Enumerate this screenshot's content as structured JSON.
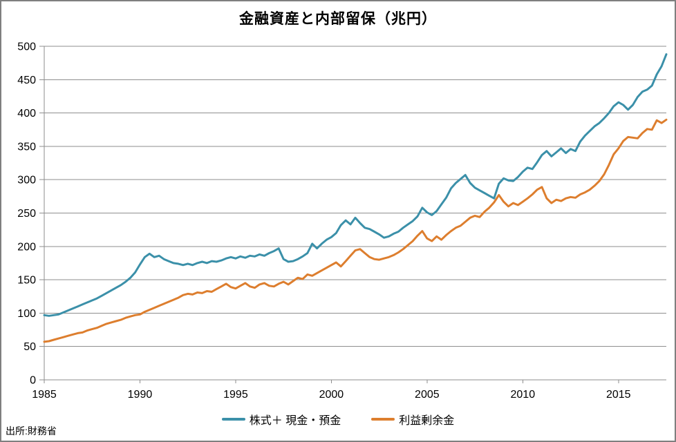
{
  "title": "金融資産と内部留保（兆円）",
  "source": "出所:財務省",
  "legend": [
    {
      "label": "株式＋ 現金・預金",
      "color": "#3B90A9"
    },
    {
      "label": "利益剰余金",
      "color": "#DD7E2E"
    }
  ],
  "colors": {
    "grid": "#8e8e8e",
    "axis": "#8e8e8e",
    "frame_border": "#7f7f7f",
    "text": "#000000"
  },
  "chart_data": {
    "type": "line",
    "title": "金融資産と内部留保（兆円）",
    "xlabel": "",
    "ylabel": "",
    "x_start": 1985,
    "x_step": 0.25,
    "x_ticks": [
      1985,
      1990,
      1995,
      2000,
      2005,
      2010,
      2015
    ],
    "ylim": [
      0,
      500
    ],
    "y_tick_step": 50,
    "grid": true,
    "legend_position": "bottom",
    "series": [
      {
        "name": "株式＋ 現金・預金",
        "color": "#3B90A9",
        "values": [
          97,
          96,
          97,
          98,
          101,
          104,
          107,
          110,
          113,
          116,
          119,
          122,
          126,
          130,
          134,
          138,
          142,
          147,
          153,
          161,
          173,
          184,
          189,
          184,
          186,
          181,
          178,
          175,
          174,
          172,
          174,
          172,
          175,
          177,
          175,
          178,
          177,
          179,
          182,
          184,
          182,
          185,
          183,
          186,
          185,
          188,
          186,
          190,
          193,
          197,
          181,
          177,
          178,
          181,
          185,
          190,
          204,
          197,
          204,
          210,
          214,
          220,
          232,
          239,
          233,
          243,
          235,
          228,
          226,
          222,
          218,
          213,
          215,
          219,
          222,
          228,
          233,
          238,
          245,
          258,
          251,
          247,
          253,
          263,
          273,
          287,
          295,
          301,
          307,
          295,
          288,
          284,
          280,
          276,
          272,
          294,
          302,
          299,
          298,
          304,
          312,
          318,
          316,
          326,
          337,
          343,
          335,
          341,
          347,
          340,
          346,
          343,
          357,
          366,
          373,
          380,
          385,
          392,
          400,
          410,
          416,
          412,
          405,
          412,
          424,
          432,
          435,
          441,
          458,
          470,
          488
        ]
      },
      {
        "name": "利益剰余金",
        "color": "#DD7E2E",
        "values": [
          57,
          58,
          60,
          62,
          64,
          66,
          68,
          70,
          71,
          74,
          76,
          78,
          81,
          84,
          86,
          88,
          90,
          93,
          95,
          97,
          98,
          102,
          105,
          108,
          111,
          114,
          117,
          120,
          123,
          127,
          129,
          128,
          131,
          130,
          133,
          132,
          136,
          140,
          144,
          139,
          137,
          141,
          145,
          140,
          138,
          143,
          145,
          141,
          140,
          144,
          147,
          143,
          148,
          153,
          151,
          158,
          156,
          160,
          164,
          168,
          172,
          176,
          170,
          178,
          186,
          194,
          196,
          190,
          184,
          181,
          180,
          182,
          184,
          187,
          191,
          196,
          202,
          208,
          216,
          223,
          212,
          208,
          215,
          210,
          217,
          223,
          228,
          231,
          237,
          243,
          246,
          244,
          252,
          258,
          266,
          277,
          267,
          260,
          265,
          262,
          267,
          272,
          278,
          285,
          289,
          272,
          265,
          270,
          268,
          272,
          274,
          273,
          278,
          281,
          285,
          291,
          298,
          308,
          322,
          338,
          347,
          358,
          364,
          363,
          362,
          370,
          376,
          375,
          389,
          385,
          390
        ]
      }
    ]
  }
}
